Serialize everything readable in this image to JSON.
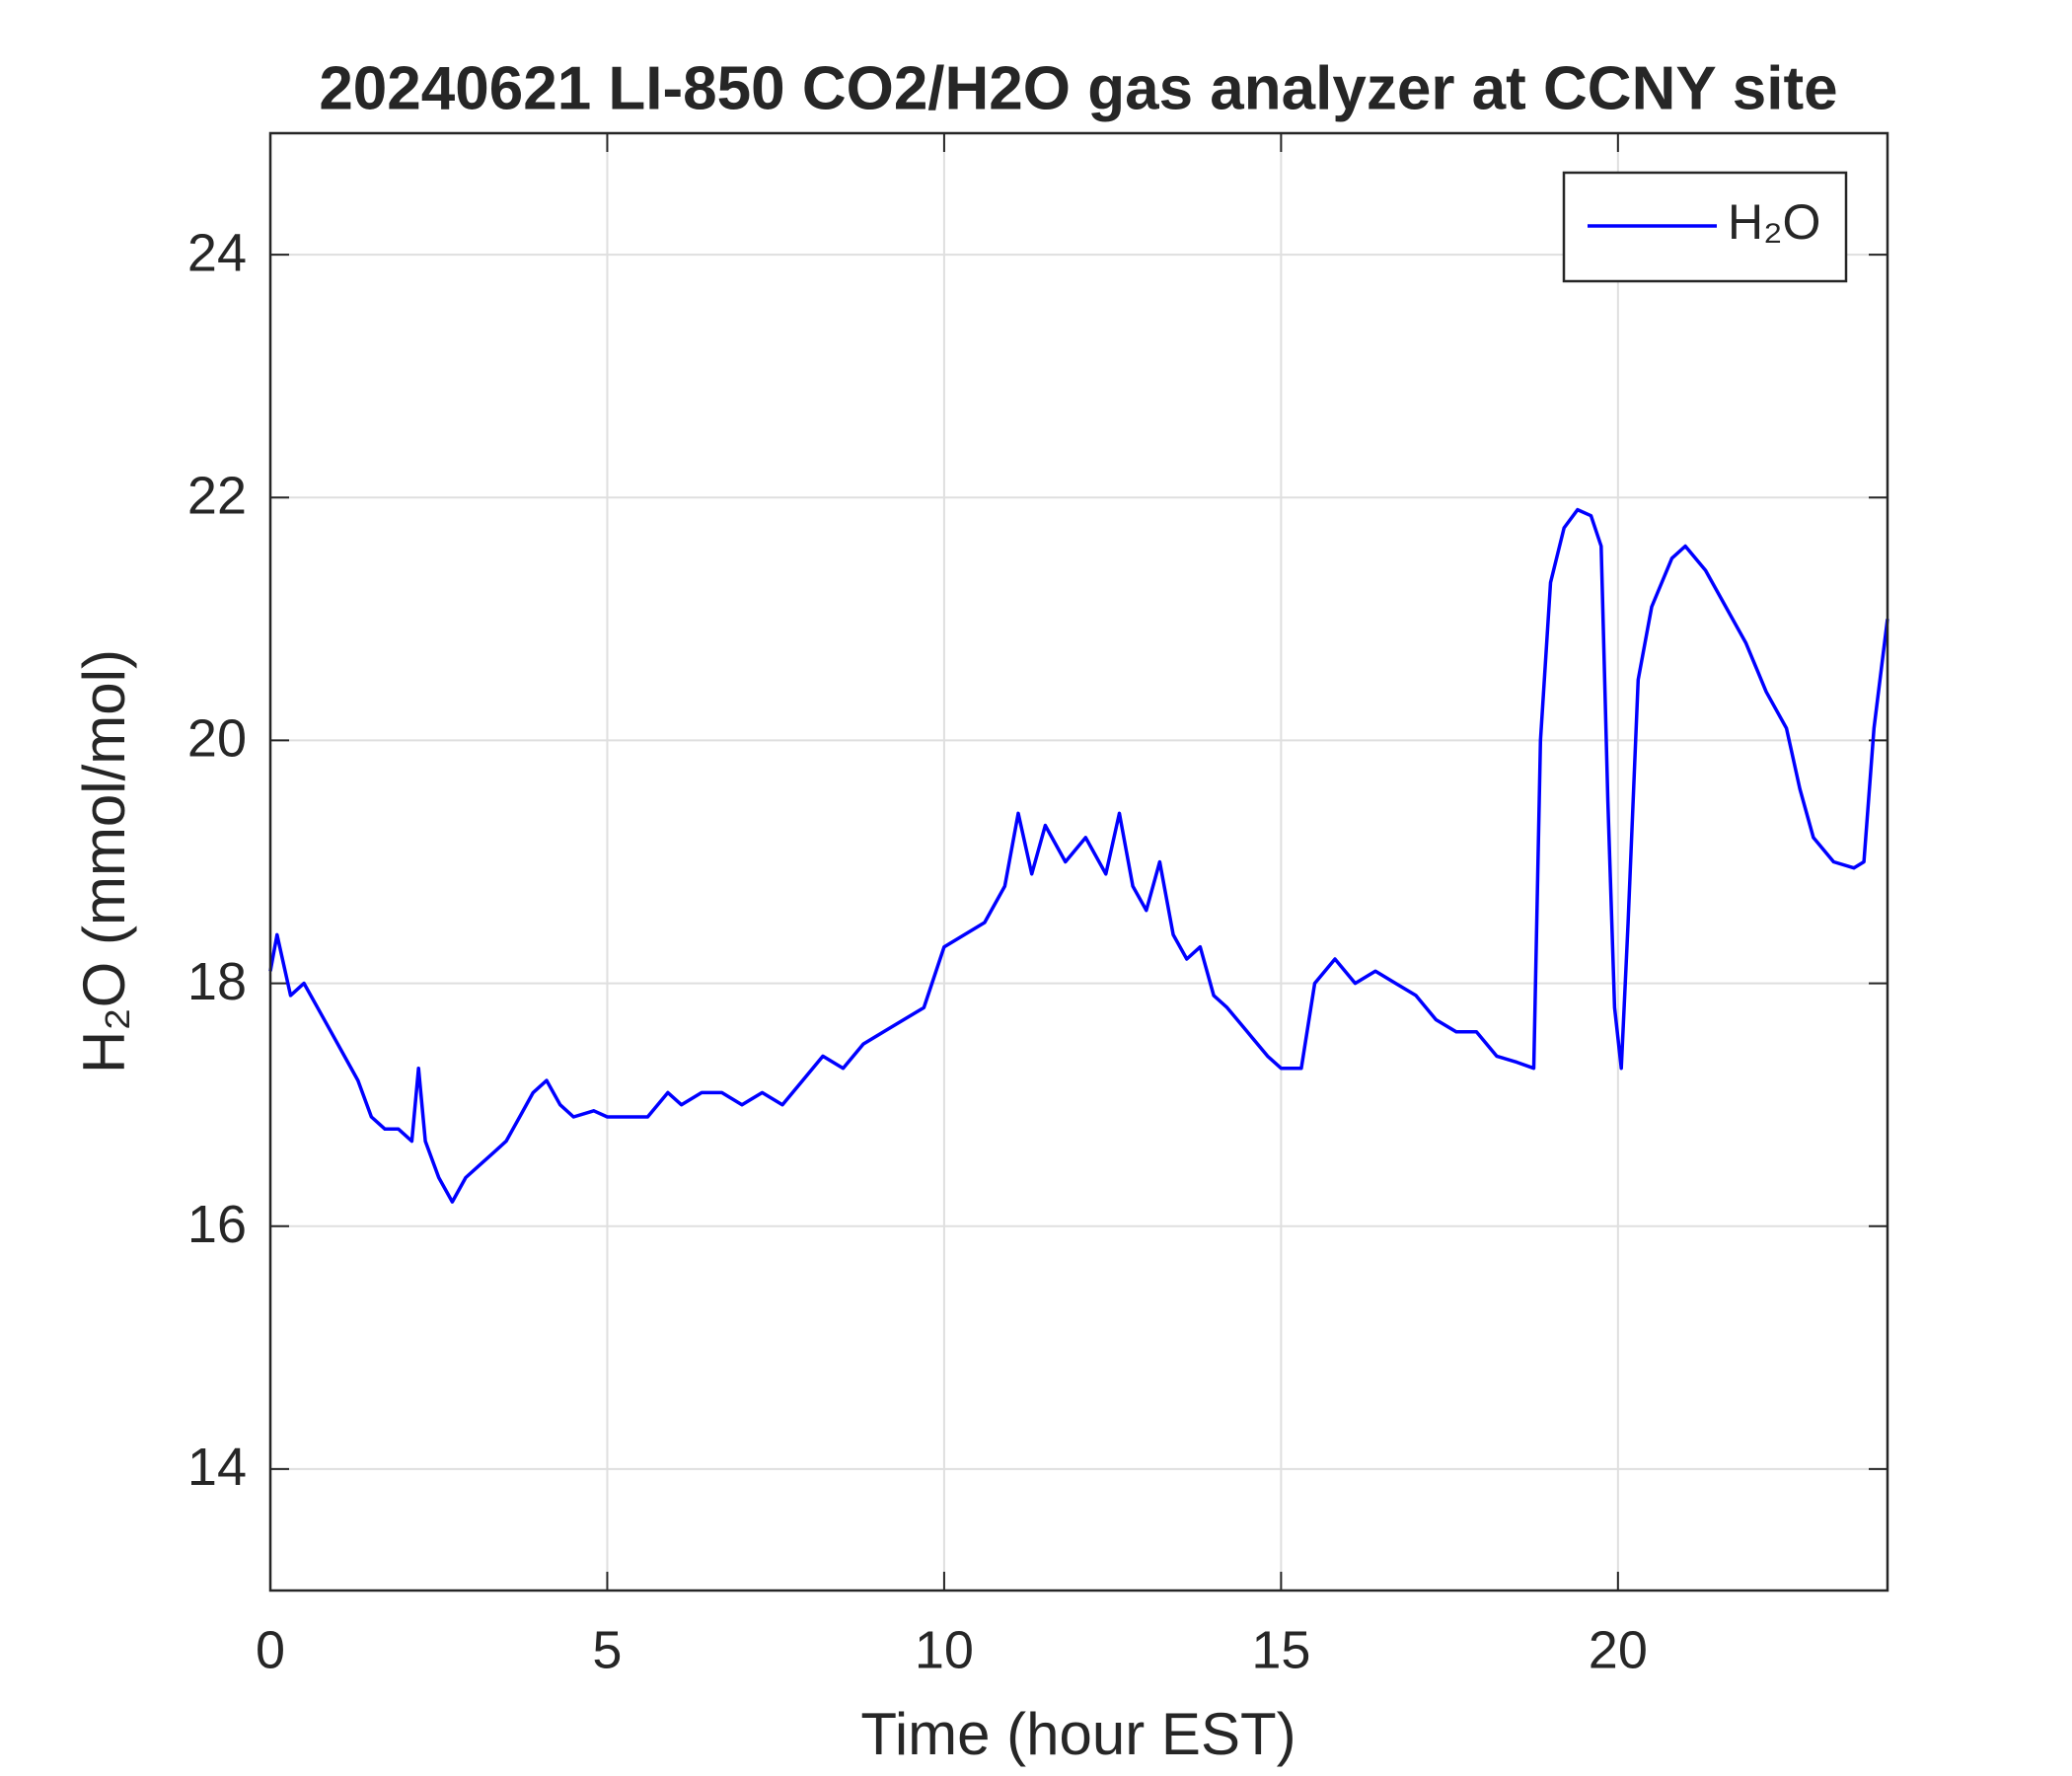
{
  "chart_data": {
    "type": "line",
    "title": "20240621 LI-850 CO2/H2O gas analyzer at CCNY site",
    "x_label": "Time (hour EST)",
    "y_label": "H₂O (mmol/mol)",
    "xlim": [
      0,
      24
    ],
    "xticks": [
      0,
      5,
      10,
      15,
      20
    ],
    "ylim": [
      13,
      25
    ],
    "yticks": [
      14,
      16,
      18,
      20,
      22,
      24
    ],
    "grid": true,
    "legend": "northeast",
    "series": [
      {
        "name": "H₂O",
        "color": "#0000ff",
        "x": [
          0,
          0.1,
          0.3,
          0.5,
          0.7,
          0.9,
          1.1,
          1.3,
          1.5,
          1.7,
          1.9,
          2.1,
          2.2,
          2.3,
          2.5,
          2.7,
          2.9,
          3.1,
          3.3,
          3.5,
          3.7,
          3.9,
          4.1,
          4.3,
          4.5,
          4.8,
          5.0,
          5.3,
          5.6,
          5.9,
          6.1,
          6.4,
          6.7,
          7.0,
          7.3,
          7.6,
          7.9,
          8.2,
          8.5,
          8.8,
          9.1,
          9.4,
          9.7,
          10.0,
          10.3,
          10.6,
          10.9,
          11.1,
          11.3,
          11.5,
          11.8,
          12.1,
          12.4,
          12.6,
          12.8,
          13.0,
          13.2,
          13.4,
          13.6,
          13.8,
          14.0,
          14.2,
          14.5,
          14.8,
          15.0,
          15.3,
          15.5,
          15.8,
          16.1,
          16.4,
          16.7,
          17.0,
          17.3,
          17.6,
          17.9,
          18.2,
          18.5,
          18.75,
          18.85,
          19.0,
          19.2,
          19.4,
          19.6,
          19.75,
          19.85,
          19.95,
          20.05,
          20.15,
          20.3,
          20.5,
          20.8,
          21.0,
          21.3,
          21.6,
          21.9,
          22.2,
          22.5,
          22.7,
          22.9,
          23.2,
          23.5,
          23.65,
          23.8,
          24.0
        ],
        "values": [
          18.1,
          18.4,
          17.9,
          18.0,
          17.8,
          17.6,
          17.4,
          17.2,
          16.9,
          16.8,
          16.8,
          16.7,
          17.3,
          16.7,
          16.4,
          16.2,
          16.4,
          16.5,
          16.6,
          16.7,
          16.9,
          17.1,
          17.2,
          17.0,
          16.9,
          16.95,
          16.9,
          16.9,
          16.9,
          17.1,
          17.0,
          17.1,
          17.1,
          17.0,
          17.1,
          17.0,
          17.2,
          17.4,
          17.3,
          17.5,
          17.6,
          17.7,
          17.8,
          18.3,
          18.4,
          18.5,
          18.8,
          19.4,
          18.9,
          19.3,
          19.0,
          19.2,
          18.9,
          19.4,
          18.8,
          18.6,
          19.0,
          18.4,
          18.2,
          18.3,
          17.9,
          17.8,
          17.6,
          17.4,
          17.3,
          17.3,
          18.0,
          18.2,
          18.0,
          18.1,
          18.0,
          17.9,
          17.7,
          17.6,
          17.6,
          17.4,
          17.35,
          17.3,
          20.0,
          21.3,
          21.75,
          21.9,
          21.85,
          21.6,
          19.5,
          17.8,
          17.3,
          18.5,
          20.5,
          21.1,
          21.5,
          21.6,
          21.4,
          21.1,
          20.8,
          20.4,
          20.1,
          19.6,
          19.2,
          19.0,
          18.95,
          19.0,
          20.1,
          21.0
        ]
      }
    ]
  }
}
